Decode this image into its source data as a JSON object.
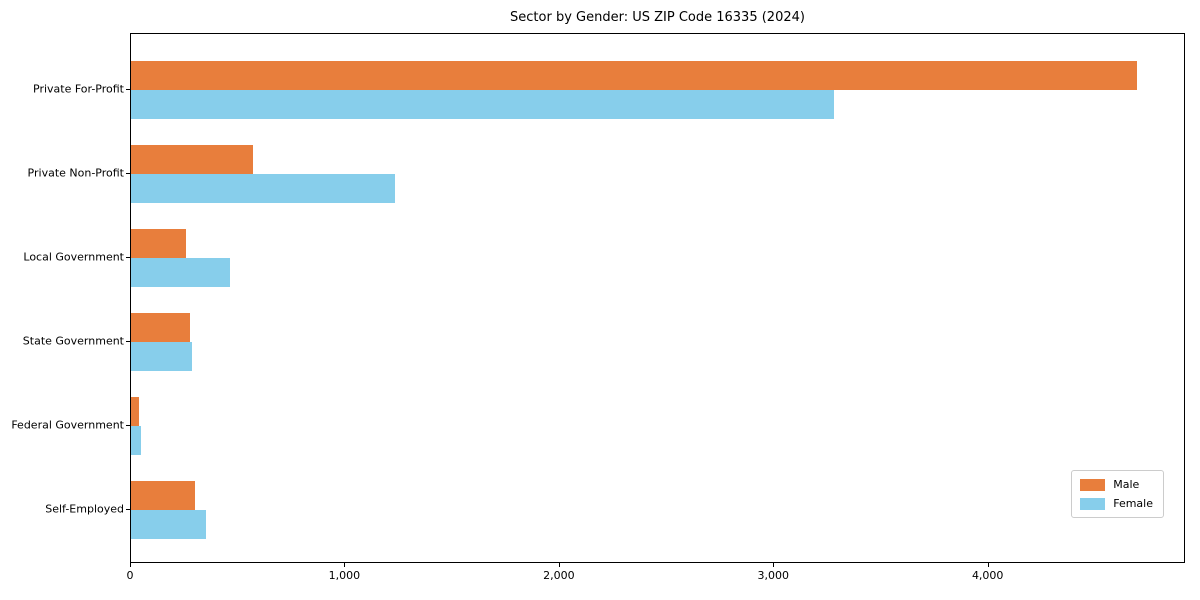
{
  "chart_data": {
    "type": "bar",
    "orientation": "horizontal",
    "title": "Sector by Gender: US ZIP Code 16335 (2024)",
    "categories": [
      "Private For-Profit",
      "Private Non-Profit",
      "Local Government",
      "State Government",
      "Federal Government",
      "Self-Employed"
    ],
    "series": [
      {
        "name": "Male",
        "color": "#e87e3c",
        "values": [
          4690,
          570,
          255,
          275,
          35,
          300
        ]
      },
      {
        "name": "Female",
        "color": "#87ceeb",
        "values": [
          3280,
          1230,
          460,
          285,
          45,
          350
        ]
      }
    ],
    "xlim": [
      0,
      4920
    ],
    "xticks": [
      0,
      1000,
      2000,
      3000,
      4000
    ],
    "xtick_labels": [
      "0",
      "1,000",
      "2,000",
      "3,000",
      "4,000"
    ],
    "xlabel": "",
    "ylabel": "",
    "grid": false,
    "legend_position": "lower right",
    "category_order": "top-to-bottom"
  }
}
